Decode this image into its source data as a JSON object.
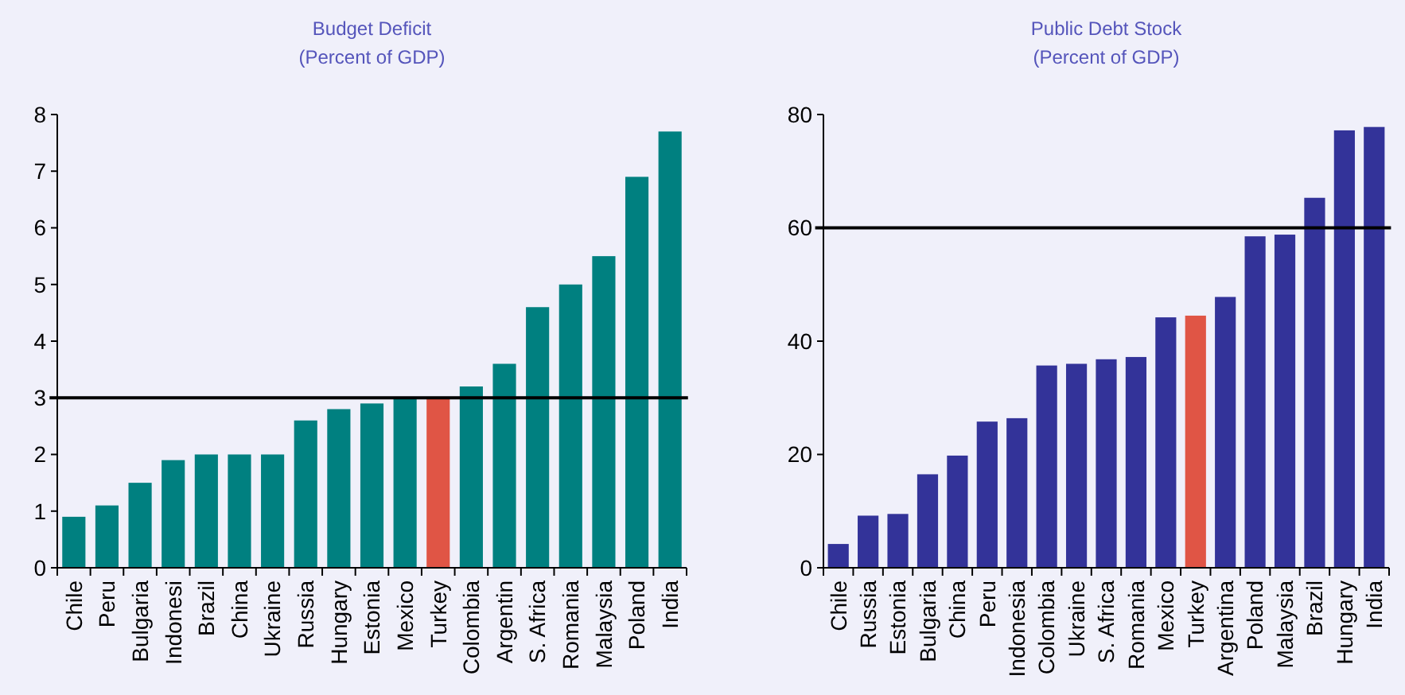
{
  "chart_data": [
    {
      "type": "bar",
      "title": "Budget Deficit",
      "subtitle": "(Percent of GDP)",
      "categories": [
        "Chile",
        "Peru",
        "Bulgaria",
        "Indonesi",
        "Brazil",
        "China",
        "Ukraine",
        "Russia",
        "Hungary",
        "Estonia",
        "Mexico",
        "Turkey",
        "Colombia",
        "Argentin",
        "S. Africa",
        "Romania",
        "Malaysia",
        "Poland",
        "India"
      ],
      "values": [
        0.9,
        1.1,
        1.5,
        1.9,
        2.0,
        2.0,
        2.0,
        2.6,
        2.8,
        2.9,
        3.0,
        3.0,
        3.2,
        3.6,
        4.6,
        5.0,
        5.5,
        6.9,
        7.7
      ],
      "colors": [
        "#008080",
        "#008080",
        "#008080",
        "#008080",
        "#008080",
        "#008080",
        "#008080",
        "#008080",
        "#008080",
        "#008080",
        "#008080",
        "#e05545",
        "#008080",
        "#008080",
        "#008080",
        "#008080",
        "#008080",
        "#008080",
        "#008080"
      ],
      "ylim": [
        0,
        8
      ],
      "yticks": [
        0,
        1,
        2,
        3,
        4,
        5,
        6,
        7,
        8
      ],
      "grid": false,
      "ref_lines": [
        {
          "axis": "y",
          "value": 3,
          "color": "#000000"
        }
      ]
    },
    {
      "type": "bar",
      "title": "Public Debt Stock",
      "subtitle": "(Percent of GDP)",
      "categories": [
        "Chile",
        "Russia",
        "Estonia",
        "Bulgaria",
        "China",
        "Peru",
        "Indonesia",
        "Colombia",
        "Ukraine",
        "S. Africa",
        "Romania",
        "Mexico",
        "Turkey",
        "Argentina",
        "Poland",
        "Malaysia",
        "Brazil",
        "Hungary",
        "India"
      ],
      "values": [
        4.2,
        9.2,
        9.5,
        16.5,
        19.8,
        25.8,
        26.4,
        35.7,
        36.0,
        36.8,
        37.2,
        44.2,
        44.5,
        47.8,
        58.5,
        58.8,
        65.3,
        77.2,
        77.8
      ],
      "colors": [
        "#333399",
        "#333399",
        "#333399",
        "#333399",
        "#333399",
        "#333399",
        "#333399",
        "#333399",
        "#333399",
        "#333399",
        "#333399",
        "#333399",
        "#e05545",
        "#333399",
        "#333399",
        "#333399",
        "#333399",
        "#333399",
        "#333399"
      ],
      "ylim": [
        0,
        80
      ],
      "yticks": [
        0,
        20,
        40,
        60,
        80
      ],
      "grid": false,
      "ref_lines": [
        {
          "axis": "y",
          "value": 60,
          "color": "#000000"
        }
      ]
    }
  ]
}
